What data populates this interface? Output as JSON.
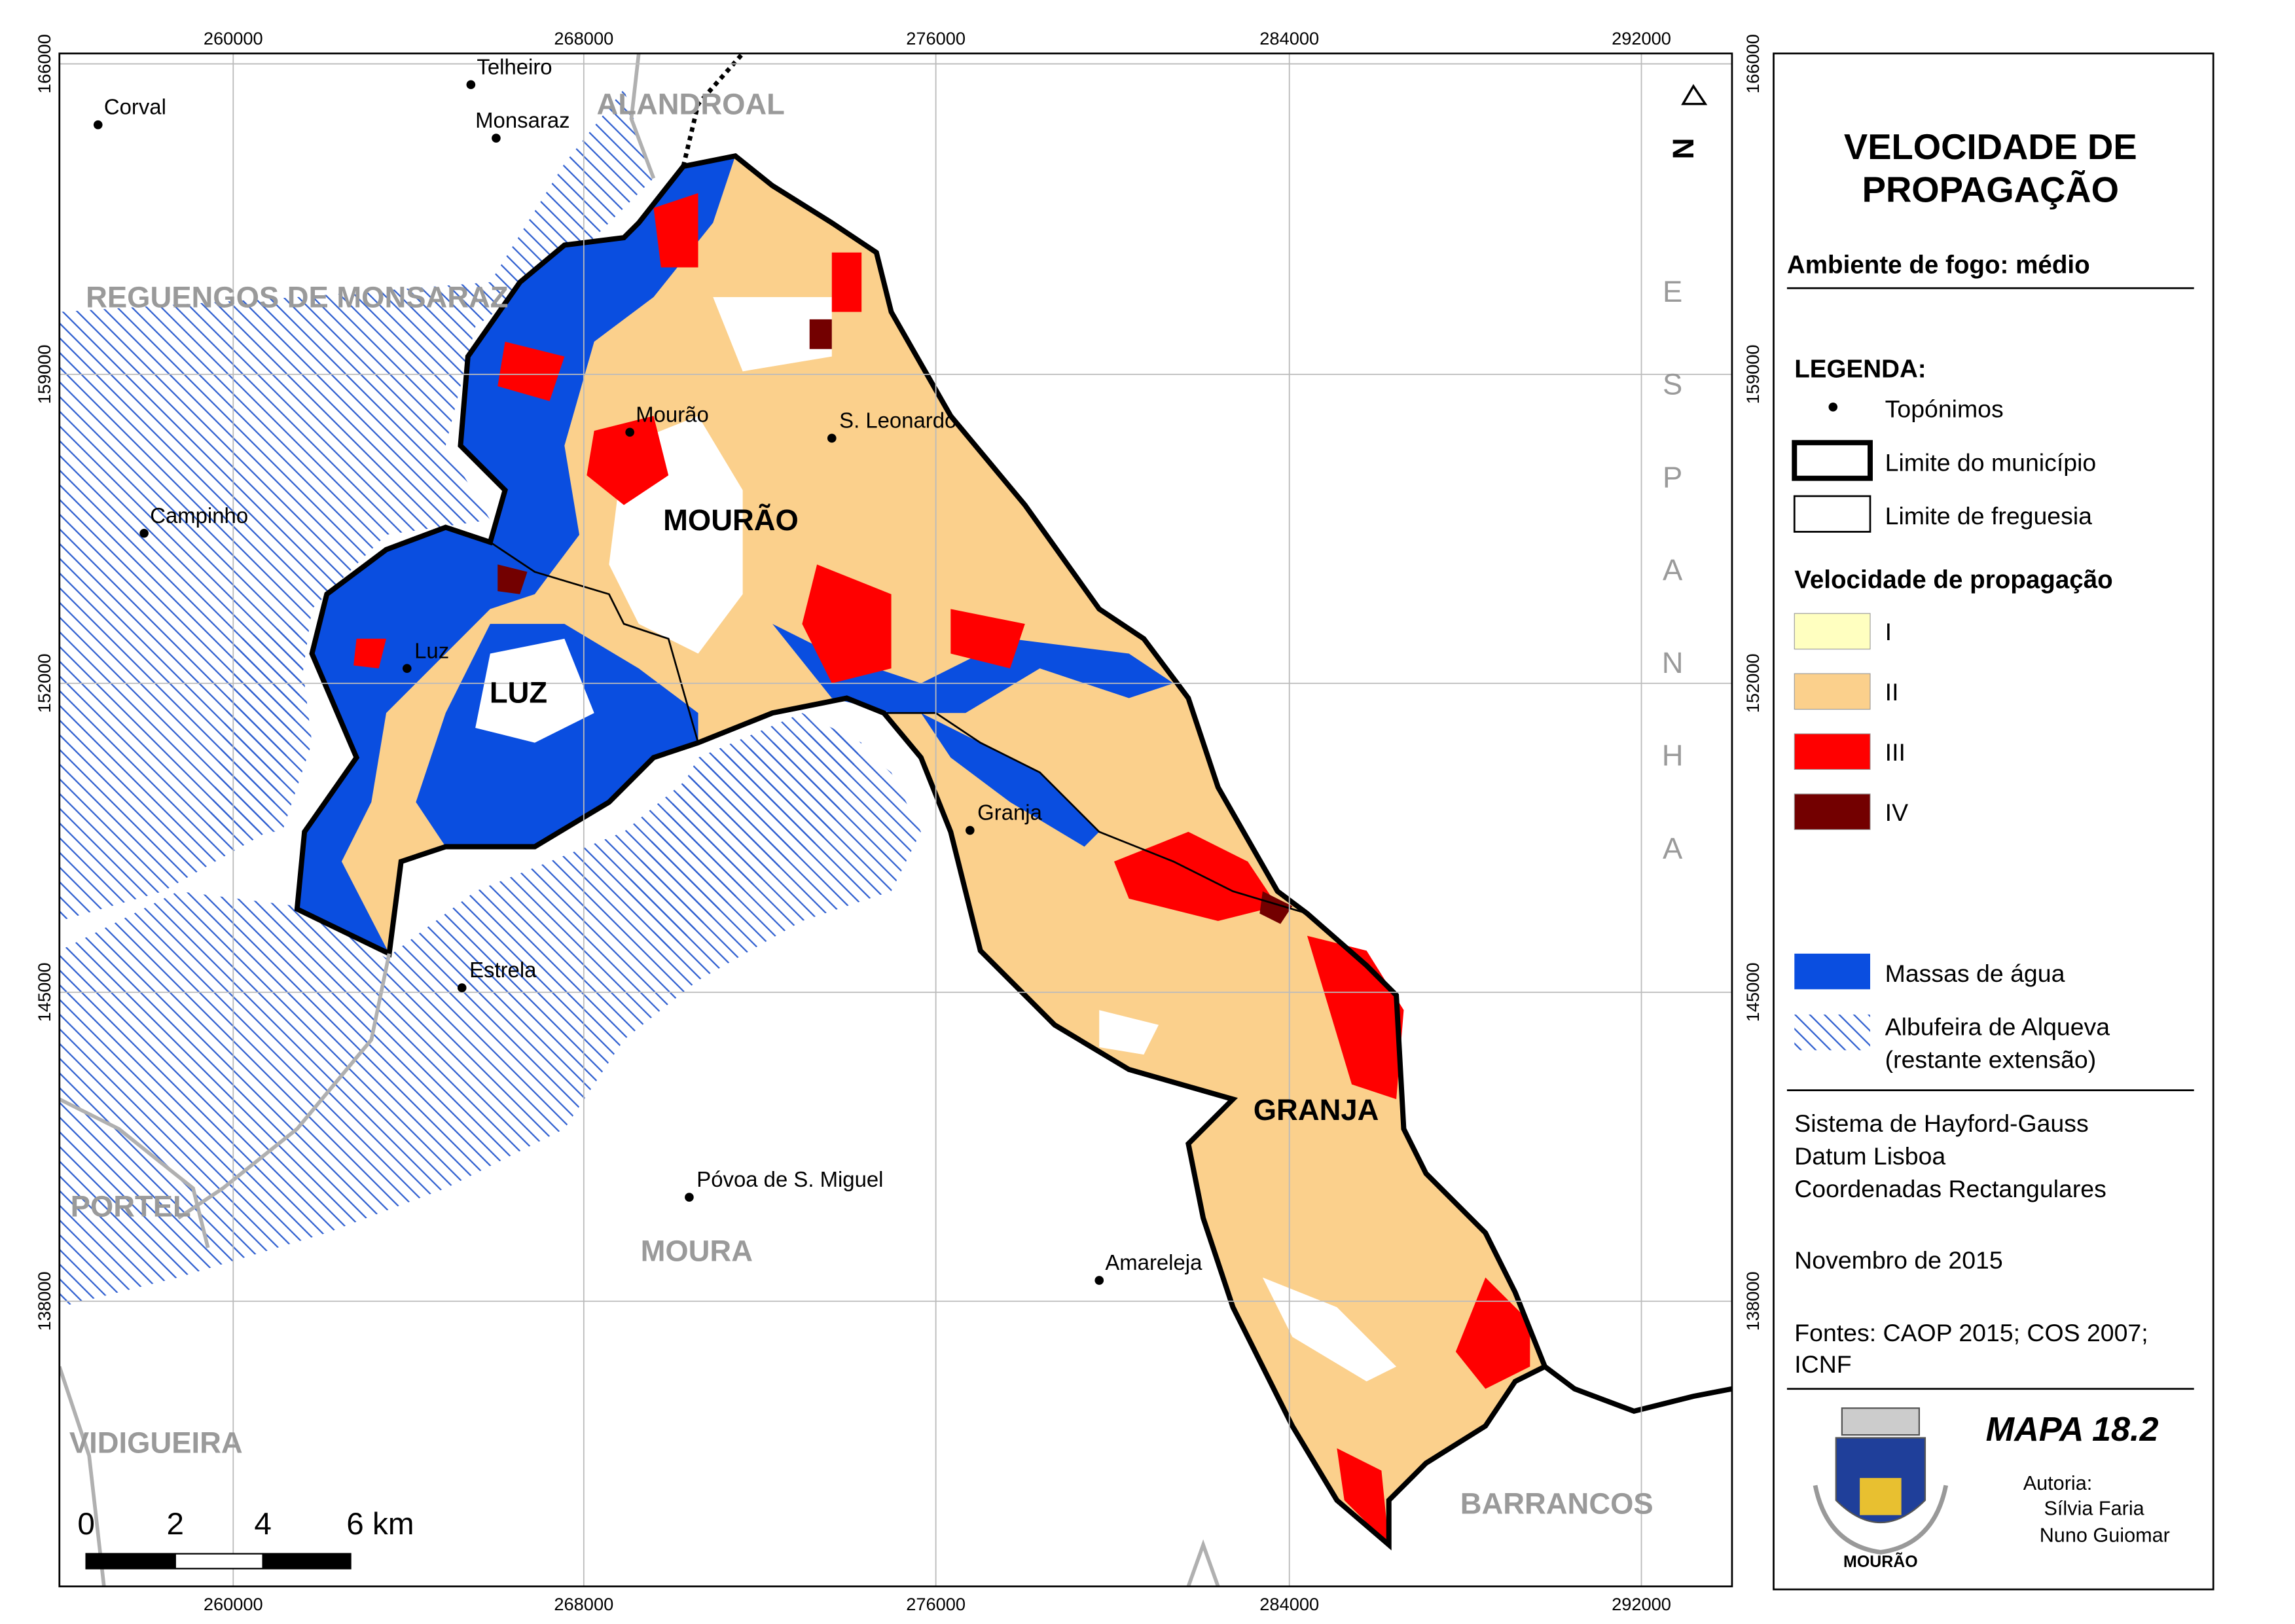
{
  "map": {
    "x_ticks": [
      "260000",
      "268000",
      "276000",
      "284000",
      "292000"
    ],
    "y_ticks": [
      "166000",
      "159000",
      "152000",
      "145000",
      "138000"
    ],
    "north": "N",
    "country": "ESPANHA",
    "places": [
      "Corval",
      "Telheiro",
      "Monsaraz",
      "Mourão",
      "S. Leonardo",
      "Campinho",
      "Luz",
      "Granja",
      "Estrela",
      "Póvoa de S. Miguel",
      "Amareleja"
    ],
    "municipalities": [
      "ALANDROAL",
      "REGUENGOS DE MONSARAZ",
      "PORTEL",
      "MOURA",
      "VIDIGUEIRA",
      "BARRANCOS"
    ],
    "parishes": [
      "MOURÃO",
      "LUZ",
      "GRANJA"
    ],
    "scale_labels": [
      "0",
      "2",
      "4",
      "6 km"
    ]
  },
  "legend_panel": {
    "title": [
      "VELOCIDADE DE",
      "PROPAGAÇÃO"
    ],
    "subtitle": "Ambiente de fogo: médio",
    "legend_heading": "LEGENDA:",
    "legend_items": [
      "Topónimos",
      "Limite do município",
      "Limite de freguesia"
    ],
    "speed_heading": "Velocidade de propagação",
    "speed_classes": [
      {
        "label": "I",
        "color": "#ffffc0"
      },
      {
        "label": "II",
        "color": "#fbd08c"
      },
      {
        "label": "III",
        "color": "#ff0000"
      },
      {
        "label": "IV",
        "color": "#730000"
      }
    ],
    "water": {
      "label": "Massas de água",
      "color": "#0a4ee0"
    },
    "reservoir": [
      "Albufeira de Alqueva",
      "(restante extensão)"
    ],
    "projection": [
      "Sistema de Hayford-Gauss",
      "Datum Lisboa",
      "Coordenadas Rectangulares"
    ],
    "date": "Novembro de 2015",
    "sources": [
      "Fontes: CAOP 2015; COS 2007;",
      "ICNF"
    ],
    "map_id": "MAPA 18.2",
    "authorship": [
      "Autoria:",
      "Sílvia Faria",
      "Nuno Guiomar"
    ],
    "crest_label": "MOURÃO"
  }
}
